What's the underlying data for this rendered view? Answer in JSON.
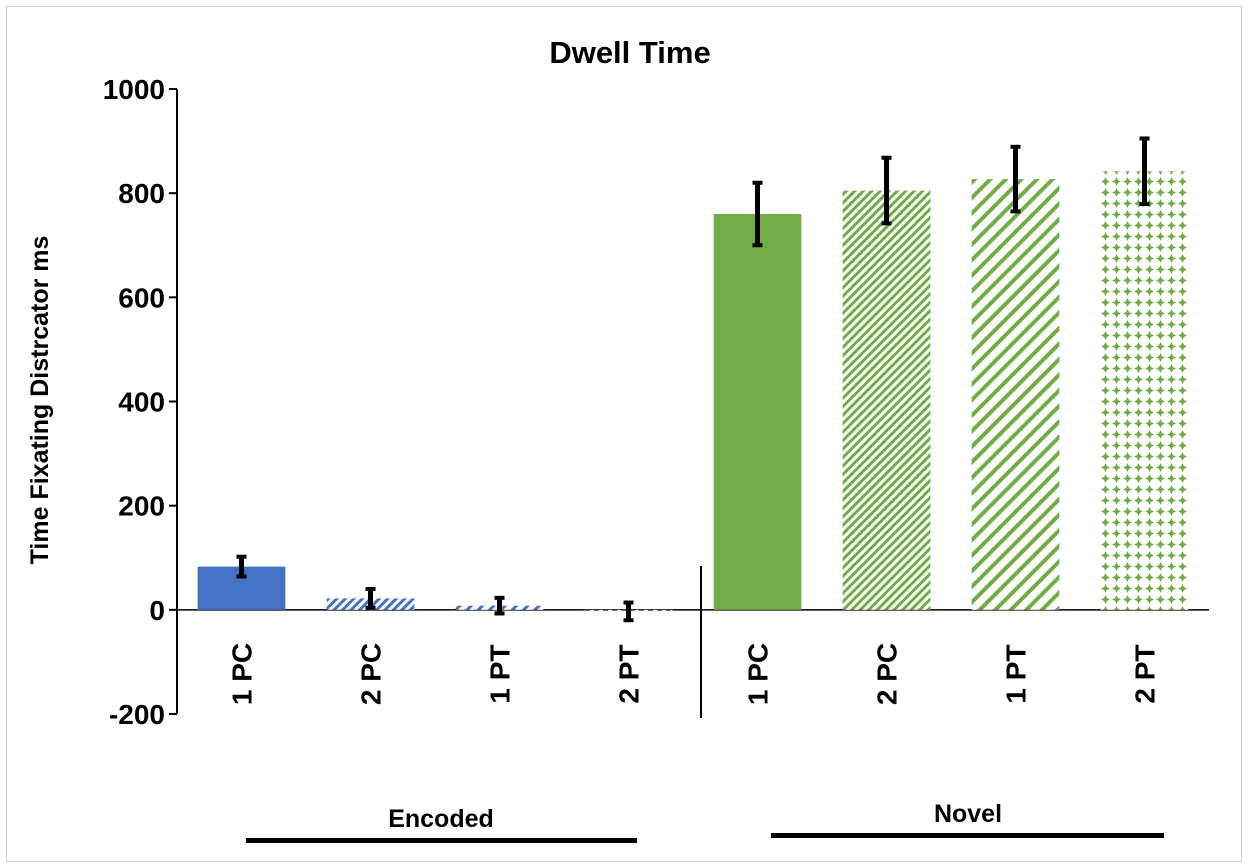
{
  "chart_data": {
    "type": "bar",
    "title": "Dwell Time",
    "ylabel": "Time Fixating Distrcator ms",
    "xlabel": "",
    "ylim": [
      -200,
      1000
    ],
    "yticks": [
      -200,
      0,
      200,
      400,
      600,
      800,
      1000
    ],
    "grid": false,
    "categories": [
      "1 PC",
      "2 PC",
      "1 PT",
      "2 PT",
      "1 PC",
      "2 PC",
      "1 PT",
      "2 PT"
    ],
    "values": [
      83,
      22,
      8,
      -3,
      760,
      805,
      827,
      842
    ],
    "error": [
      19,
      18,
      15,
      17,
      60,
      63,
      62,
      63
    ],
    "bar_colors": [
      "#4472c4",
      "#4472c4",
      "#4472c4",
      "#4472c4",
      "#70ad47",
      "#70ad47",
      "#70ad47",
      "#70ad47"
    ],
    "bar_patterns": [
      "solid",
      "dense-diagonal",
      "wide-diagonal",
      "dashed",
      "solid",
      "dense-diagonal",
      "wide-diagonal",
      "dots"
    ],
    "groups": [
      {
        "label": "Encoded",
        "start": 0,
        "end": 3
      },
      {
        "label": "Novel",
        "start": 4,
        "end": 7
      }
    ]
  }
}
